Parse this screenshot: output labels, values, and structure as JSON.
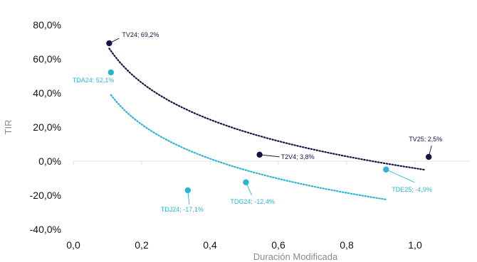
{
  "chart_data": {
    "type": "scatter",
    "xlabel": "Duración Modificada",
    "ylabel": "TIR",
    "xlim": [
      0,
      1.16
    ],
    "ylim": [
      -40,
      80
    ],
    "grid": false,
    "x_ticks": [
      "0,0",
      "0,2",
      "0,4",
      "0,6",
      "0,8",
      "1,0"
    ],
    "y_ticks": [
      "80,0%",
      "60,0%",
      "40,0%",
      "20,0%",
      "0,0%",
      "-20,0%",
      "-40,0%"
    ],
    "series": [
      {
        "color": "#14163f",
        "points": [
          {
            "label": "TV24; 69,2%",
            "x": 0.105,
            "y": 69.2
          },
          {
            "label": "T2V4; 3,8%",
            "x": 0.545,
            "y": 3.8
          },
          {
            "label": "TV25; 2,5%",
            "x": 1.04,
            "y": 2.5
          }
        ],
        "trendline": {
          "x_range": [
            0.105,
            1.03
          ]
        }
      },
      {
        "color": "#2bb5cf",
        "points": [
          {
            "label": "TDA24; 52,1%",
            "x": 0.11,
            "y": 52.1
          },
          {
            "label": "TDJ24; -17,1%",
            "x": 0.335,
            "y": -17.1
          },
          {
            "label": "TDG24; -12,4%",
            "x": 0.505,
            "y": -12.4
          },
          {
            "label": "TDE25; -4,9%",
            "x": 0.915,
            "y": -4.9
          }
        ],
        "trendline": {
          "x_range": [
            0.11,
            0.915
          ]
        }
      }
    ]
  }
}
